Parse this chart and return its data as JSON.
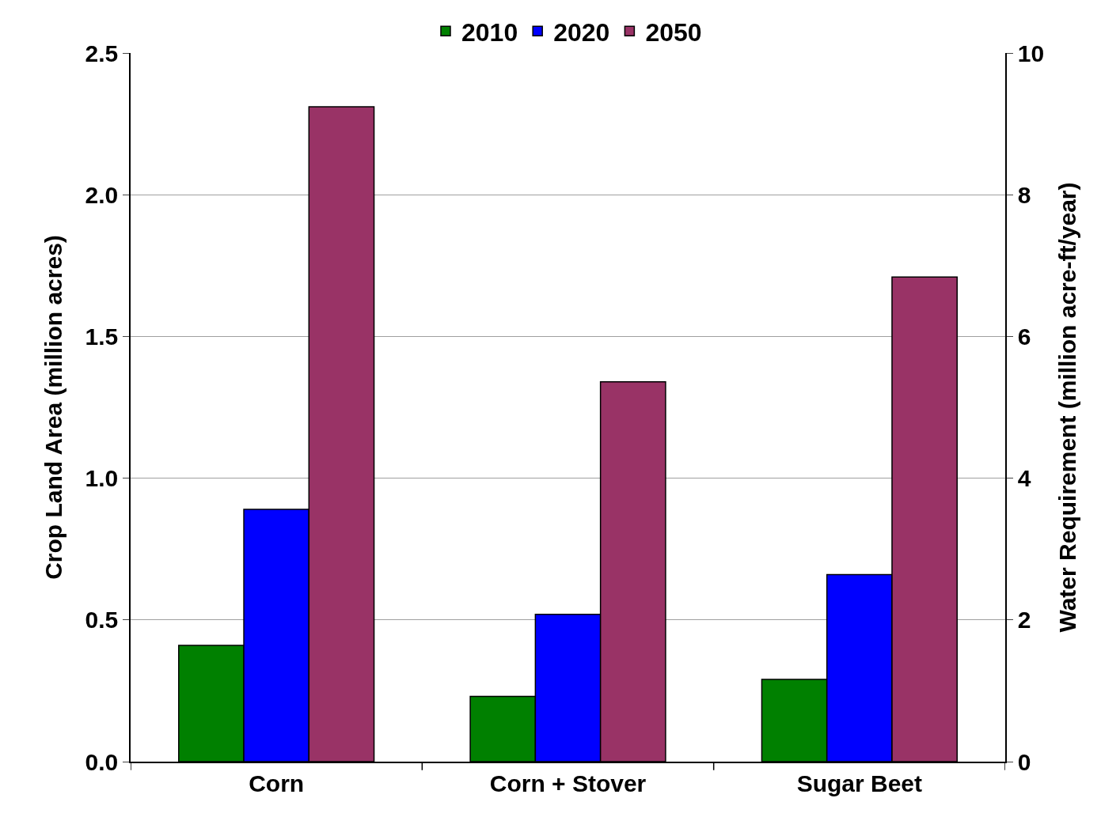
{
  "chart_data": {
    "type": "bar",
    "ylabel": "Crop Land Area (million acres)",
    "y2label": "Water Requirement (million acre-ft/year)",
    "categories": [
      "Corn",
      "Corn + Stover",
      "Sugar Beet"
    ],
    "series": [
      {
        "name": "2010",
        "color": "#008000",
        "values": [
          0.41,
          0.23,
          0.29
        ]
      },
      {
        "name": "2020",
        "color": "#0000ff",
        "values": [
          0.89,
          0.52,
          0.66
        ]
      },
      {
        "name": "2050",
        "color": "#993366",
        "values": [
          2.31,
          1.34,
          1.71
        ]
      }
    ],
    "ylim": [
      0,
      2.5
    ],
    "yticks": [
      {
        "value": 0,
        "label": "0.0"
      },
      0.5,
      {
        "value": 1,
        "label": "1.0"
      },
      1.5,
      {
        "value": 2,
        "label": "2.0"
      },
      2.5
    ],
    "y2lim": [
      0,
      10
    ],
    "y2ticks": [
      0,
      2,
      4,
      6,
      8,
      10
    ],
    "grid": "y",
    "legend": "top"
  }
}
